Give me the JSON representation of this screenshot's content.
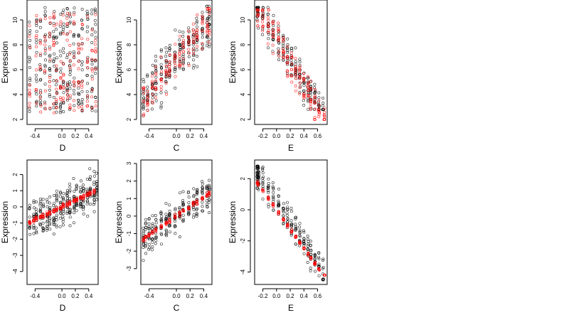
{
  "figure": {
    "colors": {
      "observed": "#000000",
      "fitted": "#ff0000"
    },
    "marker": "open-circle"
  },
  "chart_data": [
    {
      "type": "scatter",
      "xlabel": "D",
      "ylabel": "Expression",
      "xlim": [
        -0.52,
        0.54
      ],
      "ylim": [
        1.6,
        11.6
      ],
      "xticks": [
        -0.4,
        0.0,
        0.2,
        0.4
      ],
      "xtick_labels": [
        "-0.4",
        "0.0",
        "0.2",
        "0.4"
      ],
      "yticks": [
        2,
        4,
        6,
        8,
        10
      ],
      "ytick_labels": [
        "2",
        "4",
        "6",
        "8",
        "10"
      ],
      "series": [
        {
          "color": "#000000",
          "model": {
            "kind": "vertical_clusters",
            "x_levels": [
              -0.48,
              -0.38,
              -0.32,
              -0.25,
              -0.18,
              -0.12,
              -0.08,
              -0.02,
              0.02,
              0.08,
              0.12,
              0.18,
              0.25,
              0.3,
              0.38,
              0.45,
              0.5
            ],
            "y_range": [
              2.5,
              11.0
            ],
            "per_level": 16
          }
        },
        {
          "color": "#ff0000",
          "model": {
            "kind": "vertical_clusters",
            "x_levels": [
              -0.48,
              -0.38,
              -0.32,
              -0.25,
              -0.18,
              -0.12,
              -0.08,
              -0.02,
              0.02,
              0.08,
              0.12,
              0.18,
              0.25,
              0.3,
              0.38,
              0.45,
              0.5
            ],
            "y_range": [
              2.5,
              10.6
            ],
            "per_level": 10
          }
        }
      ]
    },
    {
      "type": "scatter",
      "xlabel": "C",
      "ylabel": "Expression",
      "xlim": [
        -0.52,
        0.52
      ],
      "ylim": [
        1.6,
        11.6
      ],
      "xticks": [
        -0.4,
        0.0,
        0.2,
        0.4
      ],
      "xtick_labels": [
        "-0.4",
        "0.0",
        "0.2",
        "0.4"
      ],
      "yticks": [
        2,
        4,
        6,
        8,
        10
      ],
      "ytick_labels": [
        "2",
        "4",
        "6",
        "8",
        "10"
      ],
      "series": [
        {
          "color": "#000000",
          "model": {
            "kind": "linear_levels",
            "x_levels": [
              -0.48,
              -0.42,
              -0.35,
              -0.3,
              -0.22,
              -0.15,
              -0.1,
              -0.02,
              0.05,
              0.1,
              0.18,
              0.25,
              0.3,
              0.38,
              0.45,
              0.48
            ],
            "intercept": 6.8,
            "slope": 6.0,
            "noise": 3.0,
            "y_min": 2.3,
            "y_max": 11.1,
            "per_level": 14
          }
        },
        {
          "color": "#ff0000",
          "model": {
            "kind": "linear_levels",
            "x_levels": [
              -0.48,
              -0.42,
              -0.35,
              -0.3,
              -0.22,
              -0.15,
              -0.1,
              -0.02,
              0.05,
              0.1,
              0.18,
              0.25,
              0.3,
              0.38,
              0.45,
              0.48
            ],
            "intercept": 6.8,
            "slope": 6.5,
            "noise": 2.0,
            "y_min": 2.3,
            "y_max": 10.9,
            "per_level": 9
          }
        }
      ]
    },
    {
      "type": "scatter",
      "xlabel": "E",
      "ylabel": "Expression",
      "xlim": [
        -0.32,
        0.74
      ],
      "ylim": [
        1.6,
        11.6
      ],
      "xticks": [
        -0.2,
        0.0,
        0.2,
        0.4,
        0.6
      ],
      "xtick_labels": [
        "-0.2",
        "0.0",
        "0.2",
        "0.4",
        "0.6"
      ],
      "yticks": [
        2,
        4,
        6,
        8,
        10
      ],
      "ytick_labels": [
        "2",
        "4",
        "6",
        "8",
        "10"
      ],
      "series": [
        {
          "color": "#000000",
          "model": {
            "kind": "linear_levels",
            "x_levels": [
              -0.28,
              -0.28,
              -0.27,
              -0.2,
              -0.12,
              -0.05,
              0.03,
              0.1,
              0.16,
              0.22,
              0.28,
              0.34,
              0.4,
              0.46,
              0.5,
              0.56,
              0.62,
              0.68
            ],
            "intercept": 8.6,
            "slope": -9.0,
            "noise": 2.2,
            "y_min": 2.8,
            "y_max": 11.0,
            "per_level": 12
          }
        },
        {
          "color": "#ff0000",
          "model": {
            "kind": "linear_levels",
            "x_levels": [
              -0.28,
              -0.27,
              -0.2,
              -0.12,
              -0.05,
              0.03,
              0.1,
              0.16,
              0.22,
              0.28,
              0.34,
              0.4,
              0.46,
              0.5,
              0.56,
              0.62,
              0.7
            ],
            "intercept": 8.4,
            "slope": -9.5,
            "noise": 2.4,
            "y_min": 2.0,
            "y_max": 10.8,
            "per_level": 10
          }
        }
      ]
    },
    {
      "type": "scatter",
      "xlabel": "D",
      "ylabel": "Expression",
      "xlim": [
        -0.52,
        0.54
      ],
      "ylim": [
        -4.8,
        2.9
      ],
      "xticks": [
        -0.4,
        0.0,
        0.2,
        0.4
      ],
      "xtick_labels": [
        "-0.4",
        "0.0",
        "0.2",
        "0.4"
      ],
      "yticks": [
        -4,
        -3,
        -2,
        -1,
        0,
        1,
        2
      ],
      "ytick_labels": [
        "-4",
        "-3",
        "-2",
        "-1",
        "0",
        "1",
        "2"
      ],
      "series": [
        {
          "color": "#000000",
          "model": {
            "kind": "linear_levels",
            "x_levels": [
              -0.48,
              -0.42,
              -0.38,
              -0.32,
              -0.28,
              -0.22,
              -0.18,
              -0.12,
              -0.08,
              -0.02,
              0.02,
              0.08,
              0.12,
              0.18,
              0.22,
              0.28,
              0.32,
              0.38,
              0.42,
              0.48,
              0.52
            ],
            "intercept": 0.0,
            "slope": 2.0,
            "noise": 1.7,
            "y_min": -4.5,
            "y_max": 2.6,
            "per_level": 14
          }
        },
        {
          "color": "#ff0000",
          "model": {
            "kind": "linear_levels",
            "x_levels": [
              -0.48,
              -0.42,
              -0.38,
              -0.32,
              -0.28,
              -0.22,
              -0.18,
              -0.12,
              -0.08,
              -0.02,
              0.02,
              0.08,
              0.12,
              0.18,
              0.22,
              0.28,
              0.32,
              0.38,
              0.42,
              0.48
            ],
            "intercept": 0.0,
            "slope": 2.0,
            "noise": 0.2,
            "y_min": -2.4,
            "y_max": 2.0,
            "per_level": 8
          }
        }
      ]
    },
    {
      "type": "scatter",
      "xlabel": "C",
      "ylabel": "Expression",
      "xlim": [
        -0.52,
        0.52
      ],
      "ylim": [
        -3.9,
        3.2
      ],
      "xticks": [
        -0.4,
        0.0,
        0.2,
        0.4
      ],
      "xtick_labels": [
        "-0.4",
        "0.0",
        "0.2",
        "0.4"
      ],
      "yticks": [
        -3,
        -2,
        -1,
        0,
        1,
        2,
        3
      ],
      "ytick_labels": [
        "-3",
        "-2",
        "-1",
        "0",
        "1",
        "2",
        "3"
      ],
      "series": [
        {
          "color": "#000000",
          "model": {
            "kind": "linear_levels",
            "x_levels": [
              -0.48,
              -0.45,
              -0.4,
              -0.35,
              -0.3,
              -0.22,
              -0.15,
              -0.1,
              -0.02,
              0.05,
              0.1,
              0.18,
              0.25,
              0.3,
              0.38,
              0.45,
              0.48
            ],
            "intercept": 0.0,
            "slope": 2.7,
            "noise": 1.6,
            "y_min": -3.6,
            "y_max": 2.9,
            "per_level": 14
          }
        },
        {
          "color": "#ff0000",
          "model": {
            "kind": "linear_levels",
            "x_levels": [
              -0.48,
              -0.45,
              -0.4,
              -0.35,
              -0.3,
              -0.22,
              -0.15,
              -0.1,
              -0.02,
              0.05,
              0.1,
              0.18,
              0.25,
              0.3,
              0.38,
              0.45,
              0.48
            ],
            "intercept": 0.0,
            "slope": 2.7,
            "noise": 0.2,
            "y_min": -1.5,
            "y_max": 1.4,
            "per_level": 7
          }
        }
      ]
    },
    {
      "type": "scatter",
      "xlabel": "E",
      "ylabel": "Expression",
      "xlim": [
        -0.32,
        0.74
      ],
      "ylim": [
        -4.8,
        3.2
      ],
      "xticks": [
        -0.2,
        0.0,
        0.2,
        0.4,
        0.6
      ],
      "xtick_labels": [
        "-0.2",
        "0.0",
        "0.2",
        "0.4",
        "0.6"
      ],
      "yticks": [
        -4,
        -2,
        0,
        2
      ],
      "ytick_labels": [
        "-4",
        "-2",
        "0",
        "2"
      ],
      "series": [
        {
          "color": "#000000",
          "model": {
            "kind": "linear_levels",
            "x_levels": [
              -0.28,
              -0.28,
              -0.27,
              -0.26,
              -0.2,
              -0.12,
              -0.05,
              0.03,
              0.1,
              0.16,
              0.22,
              0.28,
              0.34,
              0.4,
              0.46,
              0.5,
              0.56,
              0.62,
              0.68
            ],
            "intercept": 0.5,
            "slope": -6.5,
            "noise": 1.5,
            "y_min": -4.5,
            "y_max": 2.8,
            "per_level": 12
          }
        },
        {
          "color": "#ff0000",
          "model": {
            "kind": "linear_levels",
            "x_levels": [
              -0.28,
              -0.27,
              -0.2,
              -0.12,
              -0.05,
              0.03,
              0.1,
              0.16,
              0.22,
              0.28,
              0.34,
              0.4,
              0.46,
              0.5,
              0.56,
              0.62,
              0.7
            ],
            "intercept": 0.0,
            "slope": -6.2,
            "noise": 0.15,
            "y_min": -4.2,
            "y_max": 2.2,
            "per_level": 7
          }
        }
      ]
    }
  ]
}
